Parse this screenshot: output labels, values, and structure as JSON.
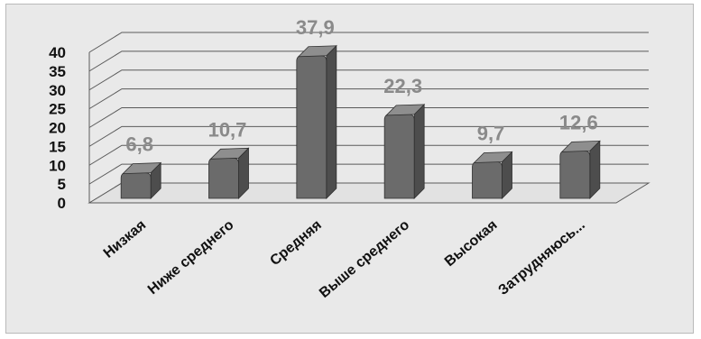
{
  "chart_data": {
    "type": "bar",
    "title": "",
    "xlabel": "",
    "ylabel": "",
    "categories": [
      "Низкая",
      "Ниже среднего",
      "Средняя",
      "Выше среднего",
      "Высокая",
      "Затрудняюсь..."
    ],
    "values": [
      6.8,
      10.7,
      37.9,
      22.3,
      9.7,
      12.6
    ],
    "value_labels": [
      "6,8",
      "10,7",
      "37,9",
      "22,3",
      "9,7",
      "12,6"
    ],
    "yticks": [
      "0",
      "5",
      "10",
      "15",
      "20",
      "25",
      "30",
      "35",
      "40"
    ],
    "ylim": [
      0,
      40
    ],
    "grid": true,
    "legend": "none",
    "style": "3d-column",
    "colors": {
      "background": "#e9e9e9",
      "bar_front": "#6b6b6b",
      "bar_side": "#4d4d4d",
      "bar_top": "#8e8e8e",
      "gridline": "#5a5a5a",
      "value_label": "#8a8a8a",
      "axis_text": "#111111"
    }
  }
}
